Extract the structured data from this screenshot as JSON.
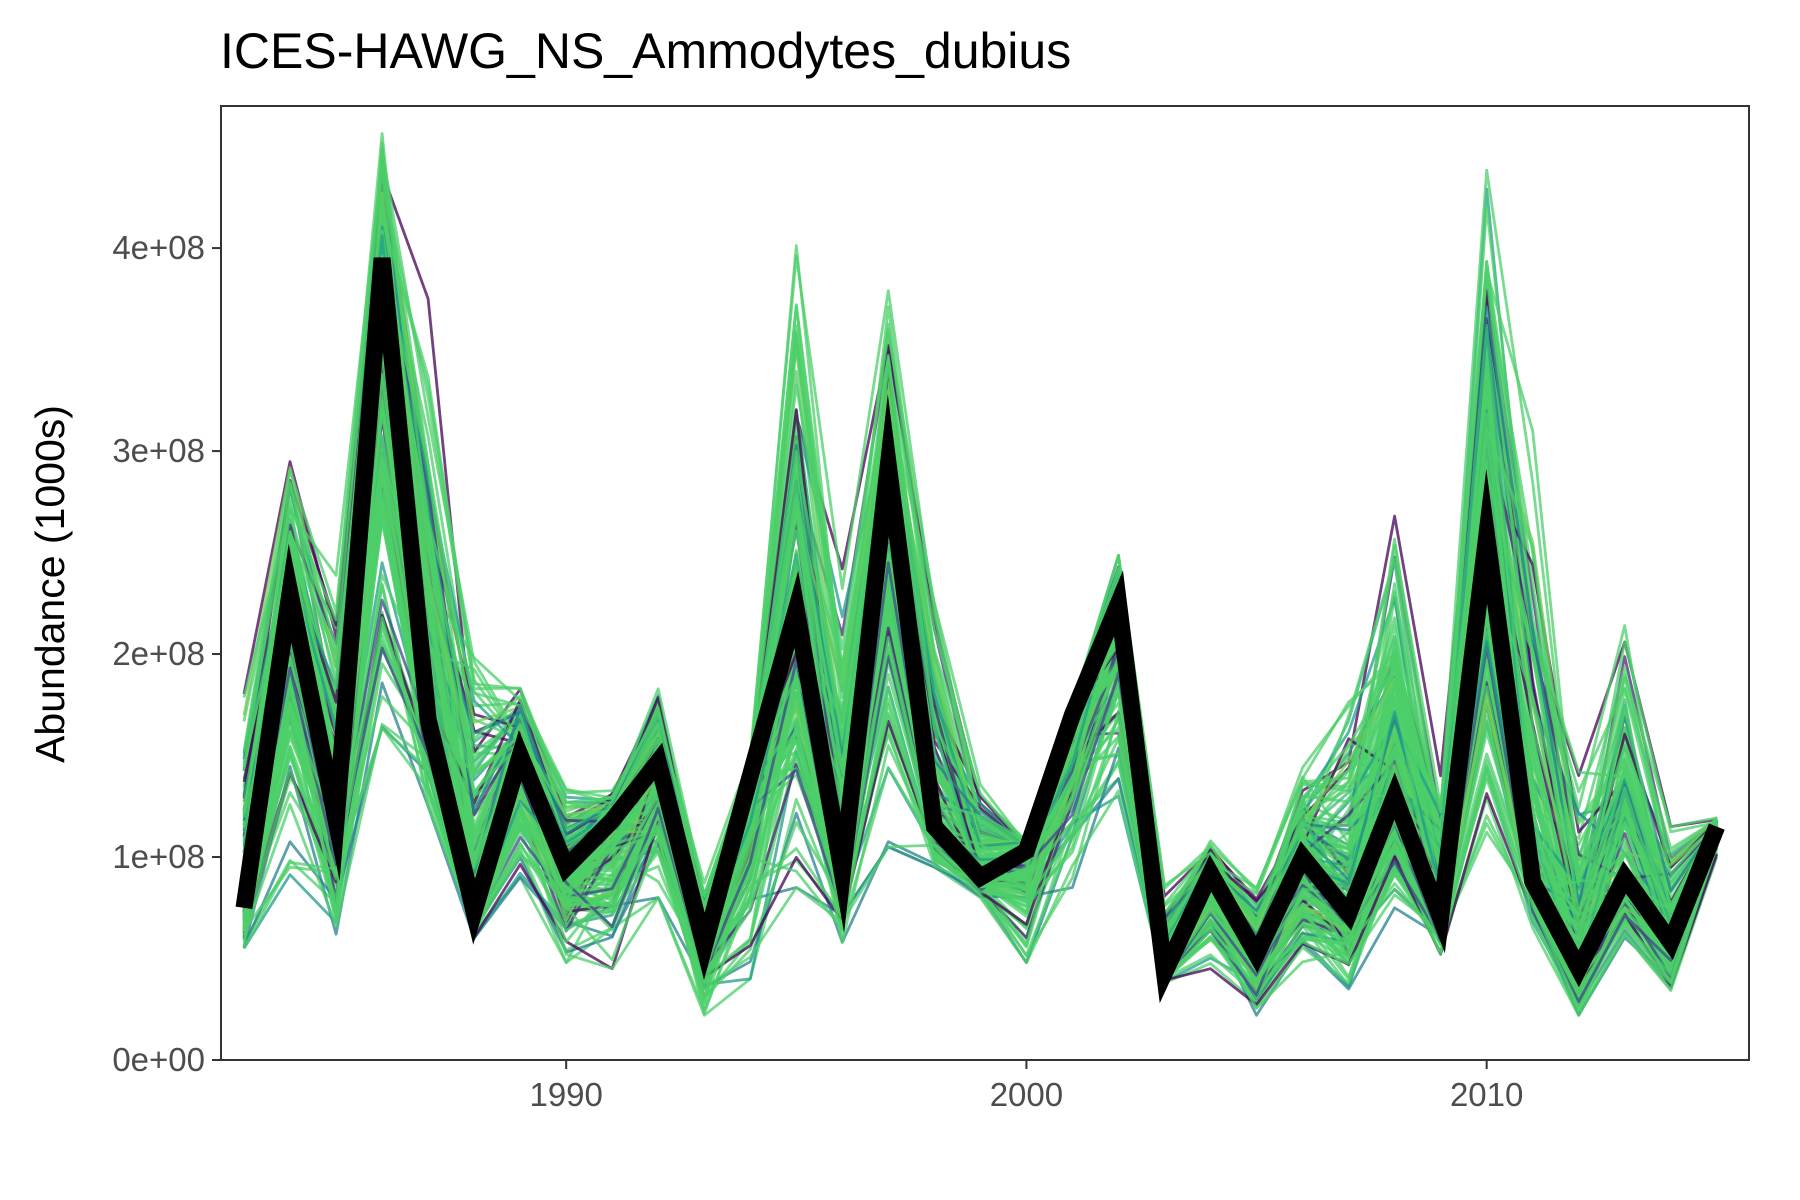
{
  "chart_data": {
    "type": "line",
    "title": "ICES-HAWG_NS_Ammodytes_dubius",
    "xlabel": "",
    "ylabel": "Abundance (1000s)",
    "xlim": [
      1982.5,
      2015.7
    ],
    "ylim": [
      0,
      470000000
    ],
    "grid": false,
    "legend": "none",
    "x_ticks": [
      1990,
      2000,
      2010
    ],
    "x_tick_labels": [
      "1990",
      "2000",
      "2010"
    ],
    "y_ticks": [
      0,
      100000000,
      200000000,
      300000000,
      400000000
    ],
    "y_tick_labels": [
      "0e+00",
      "1e+08",
      "2e+08",
      "3e+08",
      "4e+08"
    ],
    "x": [
      1983,
      1984,
      1985,
      1986,
      1987,
      1988,
      1989,
      1990,
      1991,
      1992,
      1993,
      1994,
      1995,
      1996,
      1997,
      1998,
      1999,
      2000,
      2001,
      2002,
      2003,
      2004,
      2005,
      2006,
      2007,
      2008,
      2009,
      2010,
      2011,
      2012,
      2013,
      2014,
      2015
    ],
    "highlight_series": {
      "values": [
        75000000,
        230000000,
        118000000,
        395000000,
        168000000,
        73000000,
        150000000,
        95000000,
        118000000,
        147000000,
        56000000,
        140000000,
        222000000,
        92000000,
        293000000,
        115000000,
        90000000,
        103000000,
        170000000,
        225000000,
        43000000,
        92000000,
        52000000,
        100000000,
        72000000,
        130000000,
        70000000,
        258000000,
        88000000,
        45000000,
        90000000,
        58000000,
        115000000
      ],
      "color": "#000000"
    },
    "ensemble": {
      "count": 200,
      "lower": [
        55000000,
        90000000,
        62000000,
        125000000,
        125000000,
        60000000,
        90000000,
        48000000,
        45000000,
        80000000,
        22000000,
        40000000,
        85000000,
        58000000,
        105000000,
        95000000,
        80000000,
        48000000,
        85000000,
        130000000,
        38000000,
        45000000,
        22000000,
        48000000,
        35000000,
        75000000,
        52000000,
        108000000,
        65000000,
        22000000,
        60000000,
        32000000,
        100000000
      ],
      "upper": [
        185000000,
        300000000,
        255000000,
        460000000,
        375000000,
        225000000,
        190000000,
        140000000,
        135000000,
        188000000,
        88000000,
        150000000,
        408000000,
        255000000,
        382000000,
        235000000,
        140000000,
        110000000,
        175000000,
        250000000,
        88000000,
        108000000,
        88000000,
        145000000,
        190000000,
        288000000,
        140000000,
        448000000,
        310000000,
        150000000,
        240000000,
        115000000,
        120000000
      ],
      "colors": [
        "#440154",
        "#482878",
        "#3e4a89",
        "#31688e",
        "#26828e",
        "#1f9e89",
        "#35b779",
        "#6ece58"
      ],
      "dominant_color": "#4ccf6a"
    }
  }
}
